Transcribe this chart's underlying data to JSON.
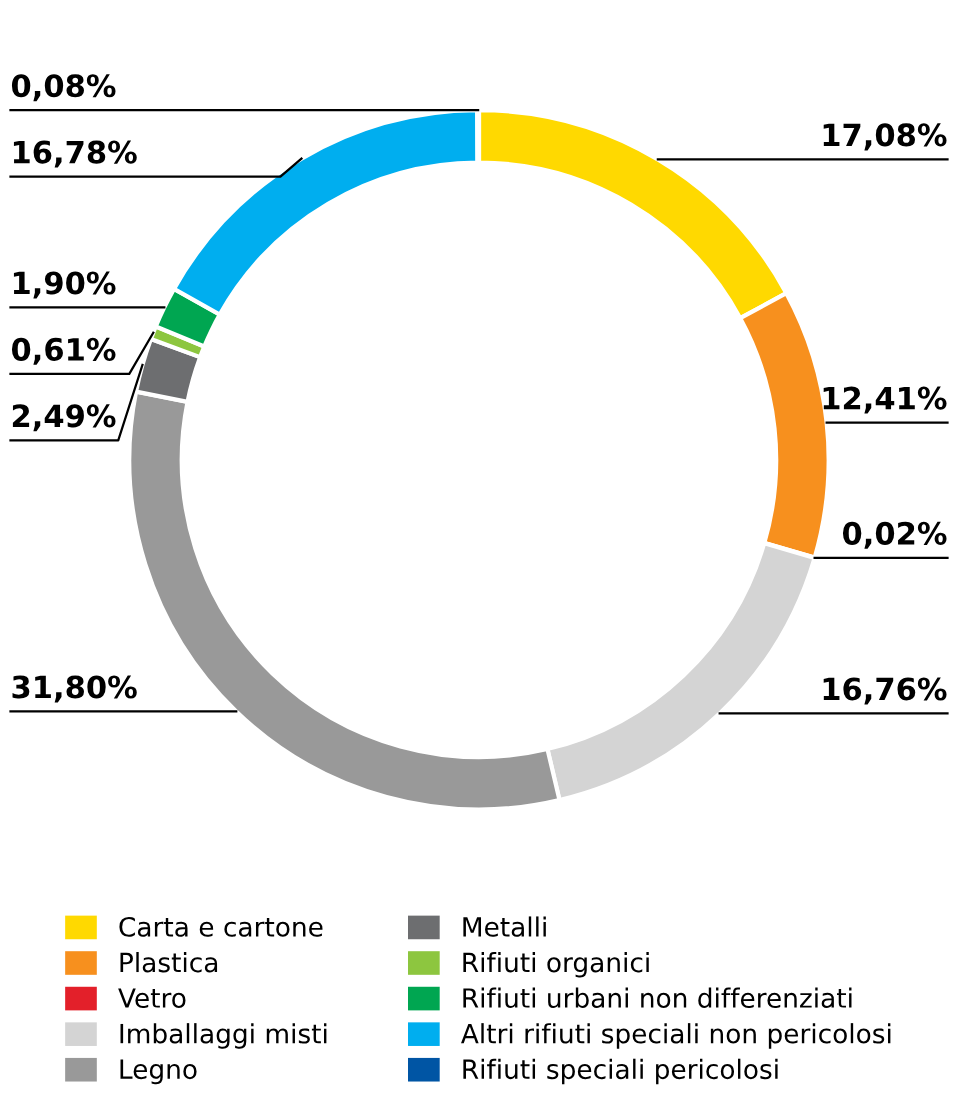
{
  "chart_data": {
    "type": "donut",
    "categories": [
      "Carta e cartone",
      "Plastica",
      "Vetro",
      "Imballaggi misti",
      "Legno",
      "Metalli",
      "Rifiuti organici",
      "Rifiuti urbani non differenziati",
      "Altri rifiuti speciali non pericolosi",
      "Rifiuti speciali pericolosi"
    ],
    "values": [
      17.08,
      12.41,
      0.02,
      16.76,
      31.8,
      2.49,
      0.61,
      1.9,
      16.78,
      0.08
    ],
    "value_labels": [
      "17,08%",
      "12,41%",
      "0,02%",
      "16,76%",
      "31,80%",
      "2,49%",
      "0,61%",
      "1,90%",
      "16,78%",
      "0,08%"
    ],
    "colors": [
      "#ffd900",
      "#f7901e",
      "#e3202a",
      "#d4d4d4",
      "#999999",
      "#6d6e70",
      "#8dc63f",
      "#00a651",
      "#00aeef",
      "#0055a4"
    ],
    "legend": "bottom"
  }
}
